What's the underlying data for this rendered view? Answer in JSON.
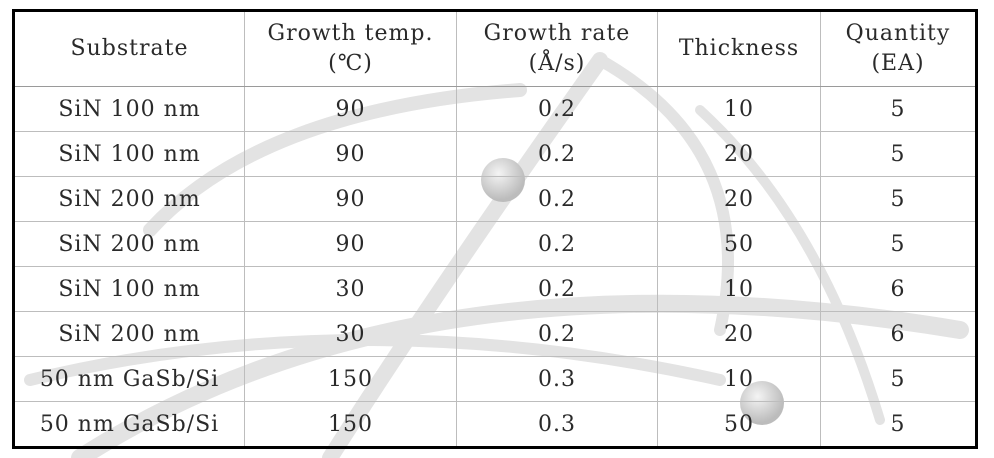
{
  "table": {
    "headers": [
      {
        "line1": "Substrate",
        "line2": ""
      },
      {
        "line1": "Growth temp.",
        "line2": "(℃)"
      },
      {
        "line1": "Growth rate",
        "line2": "(Å/s)"
      },
      {
        "line1": "Thickness",
        "line2": ""
      },
      {
        "line1": "Quantity",
        "line2": "(EA)"
      }
    ],
    "rows": [
      [
        "SiN 100 nm",
        "90",
        "0.2",
        "10",
        "5"
      ],
      [
        "SiN 100 nm",
        "90",
        "0.2",
        "20",
        "5"
      ],
      [
        "SiN 200 nm",
        "90",
        "0.2",
        "20",
        "5"
      ],
      [
        "SiN 200 nm",
        "90",
        "0.2",
        "50",
        "5"
      ],
      [
        "SiN 100 nm",
        "30",
        "0.2",
        "10",
        "6"
      ],
      [
        "SiN 200 nm",
        "30",
        "0.2",
        "20",
        "6"
      ],
      [
        "50 nm GaSb/Si",
        "150",
        "0.3",
        "10",
        "5"
      ],
      [
        "50 nm GaSb/Si",
        "150",
        "0.3",
        "50",
        "5"
      ]
    ]
  }
}
